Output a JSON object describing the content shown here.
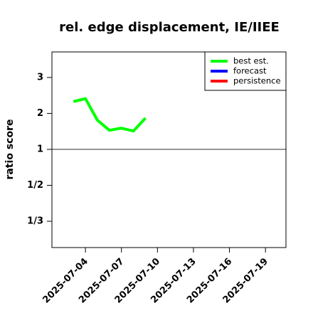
{
  "chart_data": {
    "type": "line",
    "title": "rel. edge displacement, IE/IIEE",
    "y_label": "ratio score",
    "yscale": "ratio",
    "x": [
      "2025-07-03",
      "2025-07-04",
      "2025-07-05",
      "2025-07-06",
      "2025-07-07",
      "2025-07-08",
      "2025-07-09"
    ],
    "series": [
      {
        "name": "best est.",
        "color": "#00ff00",
        "values": [
          2.33,
          2.41,
          1.81,
          1.53,
          1.59,
          1.51,
          1.87
        ]
      },
      {
        "name": "forecast",
        "color": "#0000ff",
        "values": [
          null,
          null,
          null,
          null,
          null,
          null,
          null
        ]
      },
      {
        "name": "persistence",
        "color": "#ff0000",
        "values": [
          null,
          null,
          null,
          null,
          null,
          null,
          null
        ]
      }
    ],
    "xlim": [
      "2025-07-01T05:00",
      "2025-07-20T17:00"
    ],
    "xticks": [
      "2025-07-04",
      "2025-07-07",
      "2025-07-10",
      "2025-07-13",
      "2025-07-16",
      "2025-07-19"
    ],
    "highlight_xtick": "2025-07-10",
    "highlight_color": "#228b22",
    "ylim": [
      0.268,
      3.71
    ],
    "yticks": [
      3,
      2,
      1,
      {
        "value": 0.5,
        "label": "1/2"
      },
      {
        "value": 0.3333,
        "label": "1/3"
      }
    ],
    "reference_line": 1,
    "legend": "top-right"
  }
}
